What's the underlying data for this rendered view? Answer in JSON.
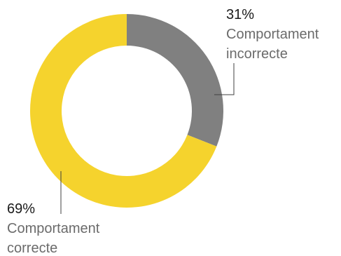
{
  "chart_data": {
    "type": "pie",
    "variant": "donut",
    "title": "",
    "start_angle_deg": 0,
    "direction": "clockwise",
    "slices": [
      {
        "label": "Comportament incorrecte",
        "label_lines": [
          "Comportament",
          "incorrecte"
        ],
        "value": 31,
        "value_label": "31%",
        "color": "#808080"
      },
      {
        "label": "Comportament correcte",
        "label_lines": [
          "Comportament",
          "correcte"
        ],
        "value": 69,
        "value_label": "69%",
        "color": "#F5D32D"
      }
    ],
    "legend": "none"
  }
}
